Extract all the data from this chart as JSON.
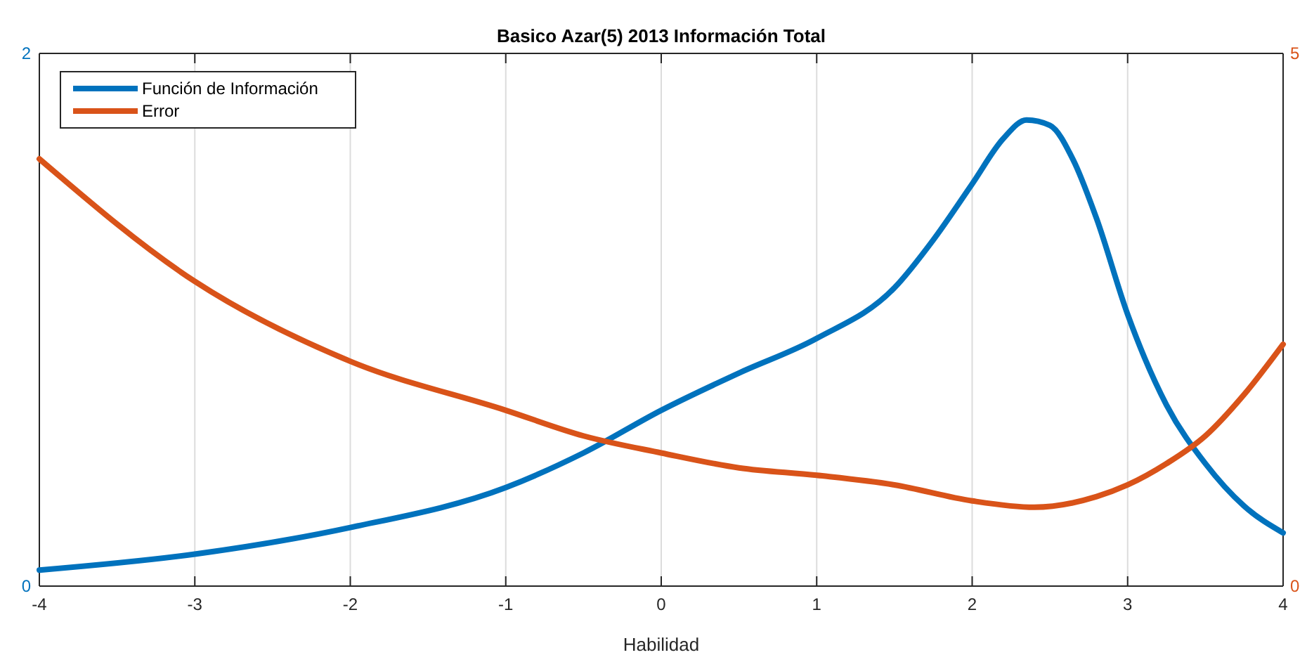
{
  "chart_data": {
    "type": "line",
    "title": "Basico Azar(5) 2013 Información Total",
    "xlabel": "Habilidad",
    "xlim": [
      -4,
      4
    ],
    "xticks": [
      -4,
      -3,
      -2,
      -1,
      0,
      1,
      2,
      3,
      4
    ],
    "ylim": [
      0,
      2
    ],
    "yticks": [
      0,
      2
    ],
    "y2lim": [
      0,
      5
    ],
    "y2ticks": [
      0,
      5
    ],
    "grid": "x",
    "legend": "top left",
    "line_style": "solid",
    "marker": "none",
    "series": [
      {
        "name": "Función de Información",
        "color": "#0072bd",
        "x": [
          -4,
          -3,
          -2,
          -1,
          -0.5,
          0,
          0.5,
          1,
          1.5,
          1.75,
          2,
          2.2,
          2.35,
          2.5,
          2.65,
          2.8,
          3,
          3.25,
          3.5,
          3.75,
          4
        ],
        "values": [
          0.06,
          0.12,
          0.22,
          0.37,
          0.5,
          0.66,
          0.8,
          0.93,
          1.12,
          1.3,
          1.51,
          1.68,
          1.75,
          1.73,
          1.6,
          1.38,
          1.02,
          0.68,
          0.46,
          0.3,
          0.2
        ]
      },
      {
        "name": "Error",
        "color": "#d95319",
        "axis": "y2",
        "x": [
          -4,
          -3,
          -2,
          -1,
          -0.5,
          0,
          0.5,
          1,
          1.5,
          2,
          2.4,
          2.8,
          3,
          3.25,
          3.5,
          3.75,
          4
        ],
        "values": [
          4.01,
          2.86,
          2.11,
          1.65,
          1.41,
          1.25,
          1.11,
          1.04,
          0.95,
          0.8,
          0.74,
          0.84,
          0.95,
          1.15,
          1.41,
          1.8,
          2.27
        ]
      }
    ]
  }
}
